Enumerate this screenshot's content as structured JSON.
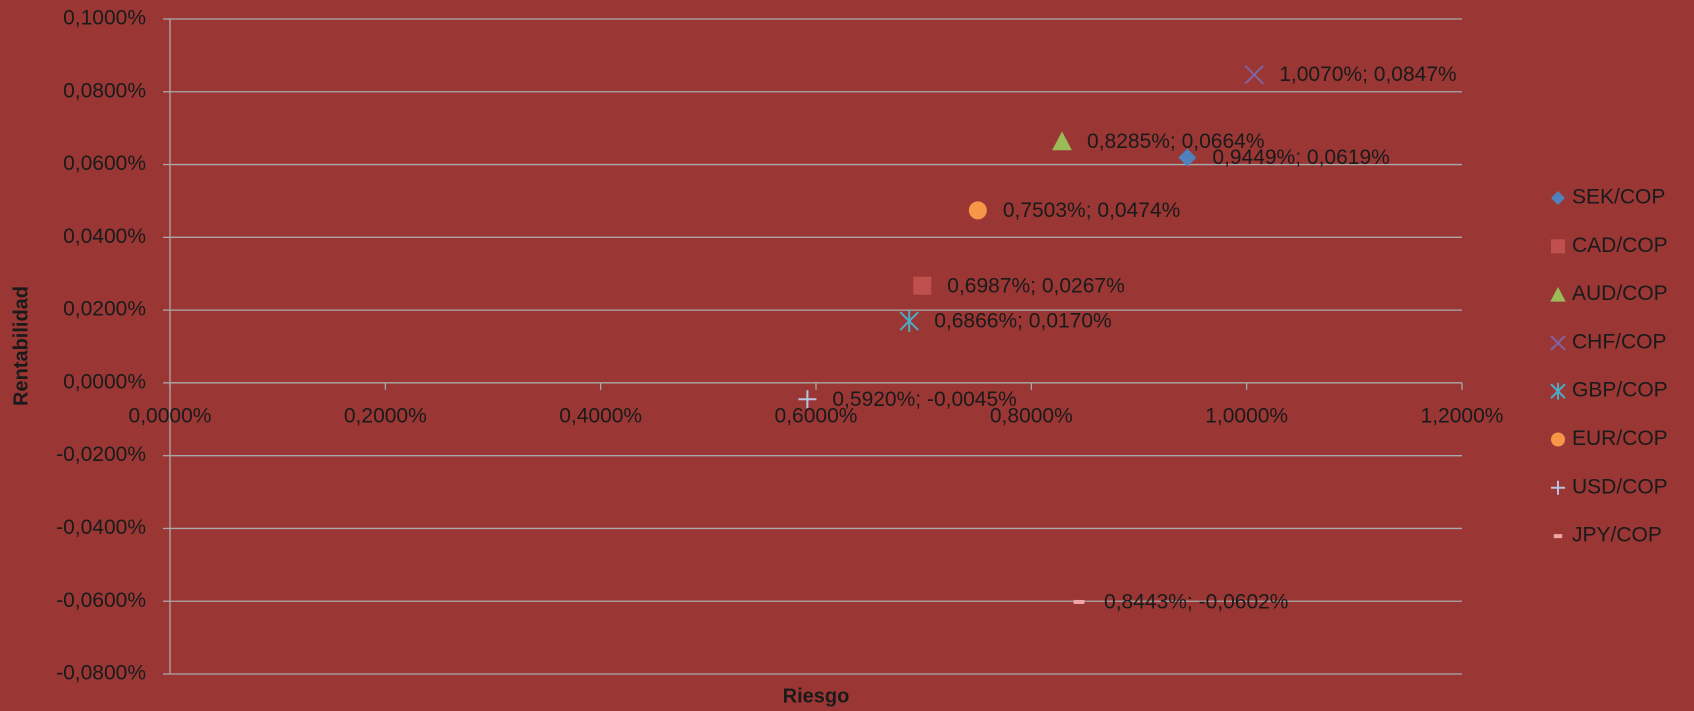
{
  "chart_data": {
    "type": "scatter",
    "x_label": "Riesgo",
    "y_label": "Rentabilidad",
    "xlim": [
      0,
      1.2
    ],
    "ylim": [
      -0.08,
      0.1
    ],
    "xticks": [
      {
        "value": 0,
        "label": "0,0000%"
      },
      {
        "value": 0.2,
        "label": "0,2000%"
      },
      {
        "value": 0.4,
        "label": "0,4000%"
      },
      {
        "value": 0.6,
        "label": "0,6000%"
      },
      {
        "value": 0.8,
        "label": "0,8000%"
      },
      {
        "value": 1.0,
        "label": "1,0000%"
      },
      {
        "value": 1.2,
        "label": "1,2000%"
      }
    ],
    "yticks": [
      {
        "value": -0.08,
        "label": "-0,0800%"
      },
      {
        "value": -0.06,
        "label": "-0,0600%"
      },
      {
        "value": -0.04,
        "label": "-0,0400%"
      },
      {
        "value": -0.02,
        "label": "-0,0200%"
      },
      {
        "value": 0,
        "label": "0,0000%"
      },
      {
        "value": 0.02,
        "label": "0,0200%"
      },
      {
        "value": 0.04,
        "label": "0,0400%"
      },
      {
        "value": 0.06,
        "label": "0,0600%"
      },
      {
        "value": 0.08,
        "label": "0,0800%"
      },
      {
        "value": 0.1,
        "label": "0,1000%"
      }
    ],
    "grid": true,
    "legend": "right",
    "series": [
      {
        "name": "SEK/COP",
        "color": "#4f81bd",
        "marker": "diamond",
        "x": [
          0.9449
        ],
        "values": [
          0.0619
        ],
        "value_labels": [
          "0,9449%; 0,0619%"
        ]
      },
      {
        "name": "CAD/COP",
        "color": "#c0504d",
        "marker": "square",
        "x": [
          0.6987
        ],
        "values": [
          0.0267
        ],
        "value_labels": [
          "0,6987%; 0,0267%"
        ]
      },
      {
        "name": "AUD/COP",
        "color": "#9bbb59",
        "marker": "triangle",
        "x": [
          0.8285
        ],
        "values": [
          0.0664
        ],
        "value_labels": [
          "0,8285%; 0,0664%"
        ]
      },
      {
        "name": "CHF/COP",
        "color": "#8064a2",
        "marker": "x",
        "x": [
          1.007
        ],
        "values": [
          0.0847
        ],
        "value_labels": [
          "1,0070%; 0,0847%"
        ]
      },
      {
        "name": "GBP/COP",
        "color": "#4bacc6",
        "marker": "asterisk",
        "x": [
          0.6866
        ],
        "values": [
          0.017
        ],
        "value_labels": [
          "0,6866%; 0,0170%"
        ]
      },
      {
        "name": "EUR/COP",
        "color": "#f79646",
        "marker": "circle",
        "x": [
          0.7503
        ],
        "values": [
          0.0474
        ],
        "value_labels": [
          "0,7503%; 0,0474%"
        ]
      },
      {
        "name": "USD/COP",
        "color": "#b7c4e0",
        "marker": "plus",
        "x": [
          0.592
        ],
        "values": [
          -0.0045
        ],
        "value_labels": [
          "0,5920%; -0,0045%"
        ]
      },
      {
        "name": "JPY/COP",
        "color": "#f2a5a5",
        "marker": "dash",
        "x": [
          0.8443
        ],
        "values": [
          -0.0602
        ],
        "value_labels": [
          "0,8443%; -0,0602%"
        ]
      }
    ]
  }
}
